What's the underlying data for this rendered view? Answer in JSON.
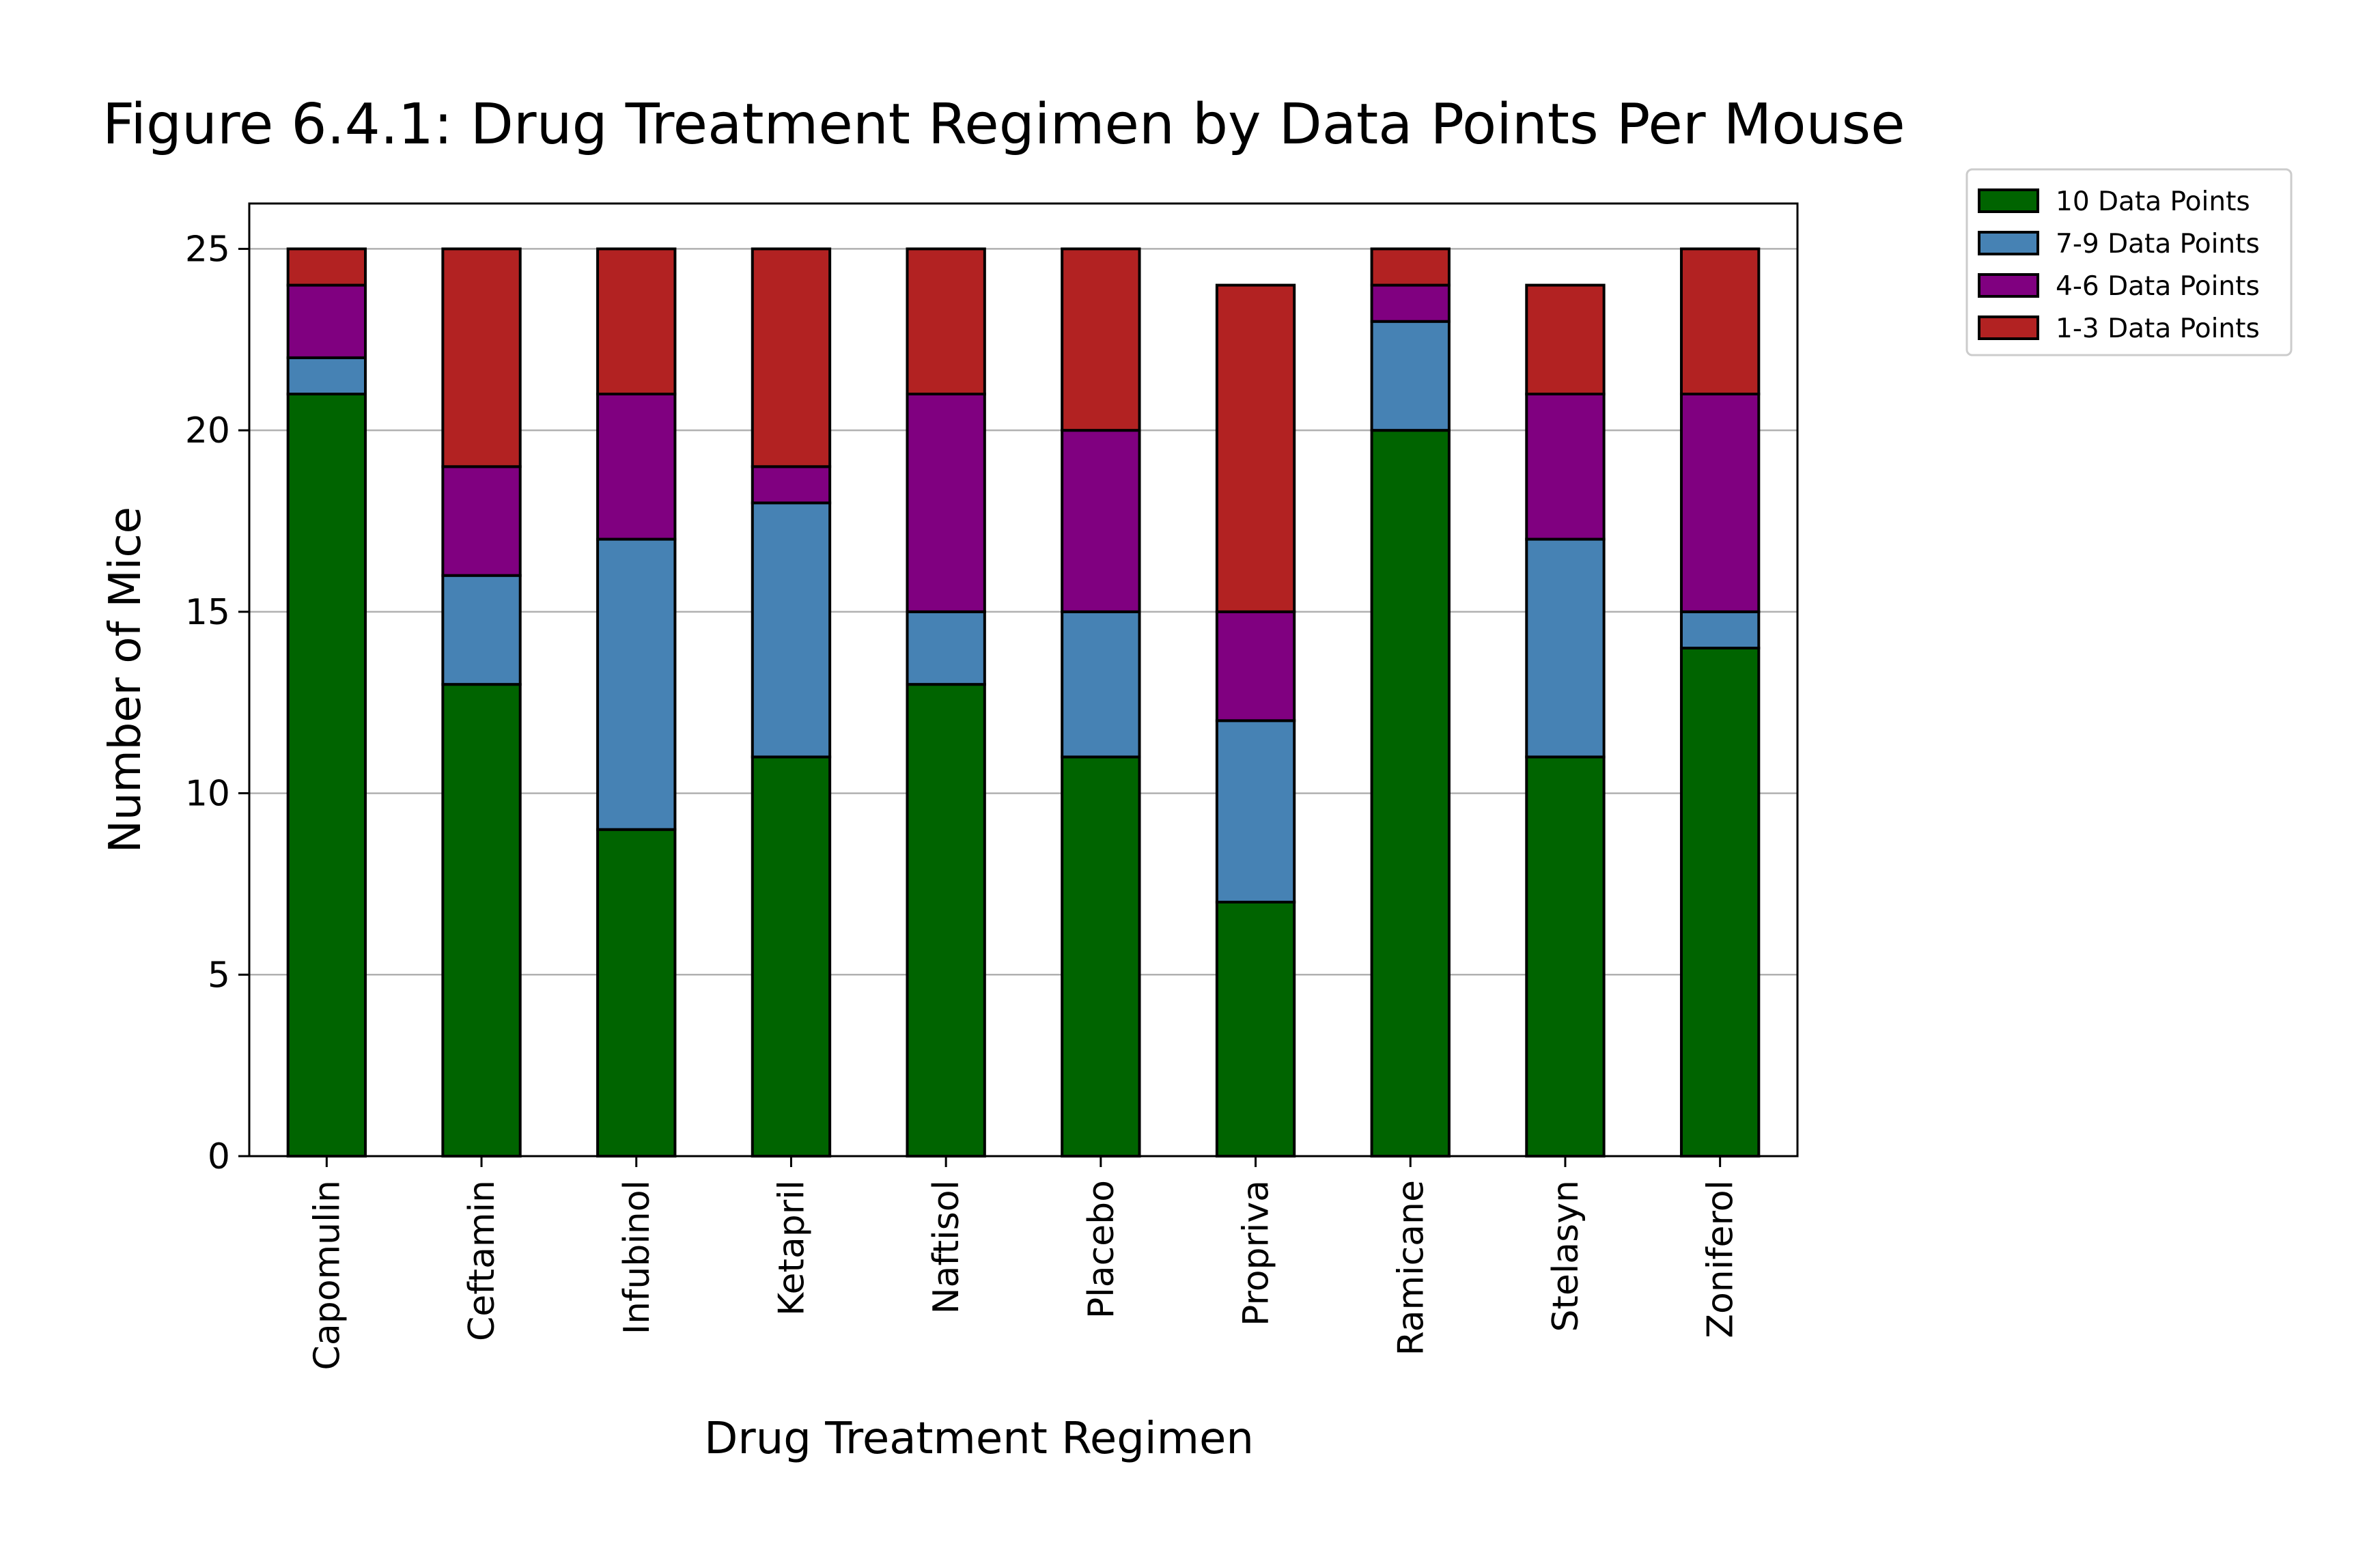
{
  "chart_data": {
    "type": "bar",
    "stacked": true,
    "title": "Figure 6.4.1: Drug Treatment Regimen by Data Points Per Mouse",
    "xlabel": "Drug Treatment Regimen",
    "ylabel": "Number of Mice",
    "ylim": [
      0,
      26.25
    ],
    "yticks": [
      0,
      5,
      10,
      15,
      20,
      25
    ],
    "grid": "horizontal",
    "legend_position": "outside-top-right",
    "categories": [
      "Capomulin",
      "Ceftamin",
      "Infubinol",
      "Ketapril",
      "Naftisol",
      "Placebo",
      "Propriva",
      "Ramicane",
      "Stelasyn",
      "Zoniferol"
    ],
    "series": [
      {
        "name": "10 Data Points",
        "color": "#006400",
        "values": [
          21,
          13,
          9,
          11,
          13,
          11,
          7,
          20,
          11,
          14
        ]
      },
      {
        "name": "7-9 Data Points",
        "color": "#4682b4",
        "values": [
          1,
          3,
          8,
          7,
          2,
          4,
          5,
          3,
          6,
          1
        ]
      },
      {
        "name": "4-6 Data Points",
        "color": "#800080",
        "values": [
          2,
          3,
          4,
          1,
          6,
          5,
          3,
          1,
          4,
          6
        ]
      },
      {
        "name": "1-3 Data Points",
        "color": "#b22222",
        "values": [
          1,
          6,
          4,
          6,
          4,
          5,
          9,
          1,
          3,
          4
        ]
      }
    ]
  }
}
